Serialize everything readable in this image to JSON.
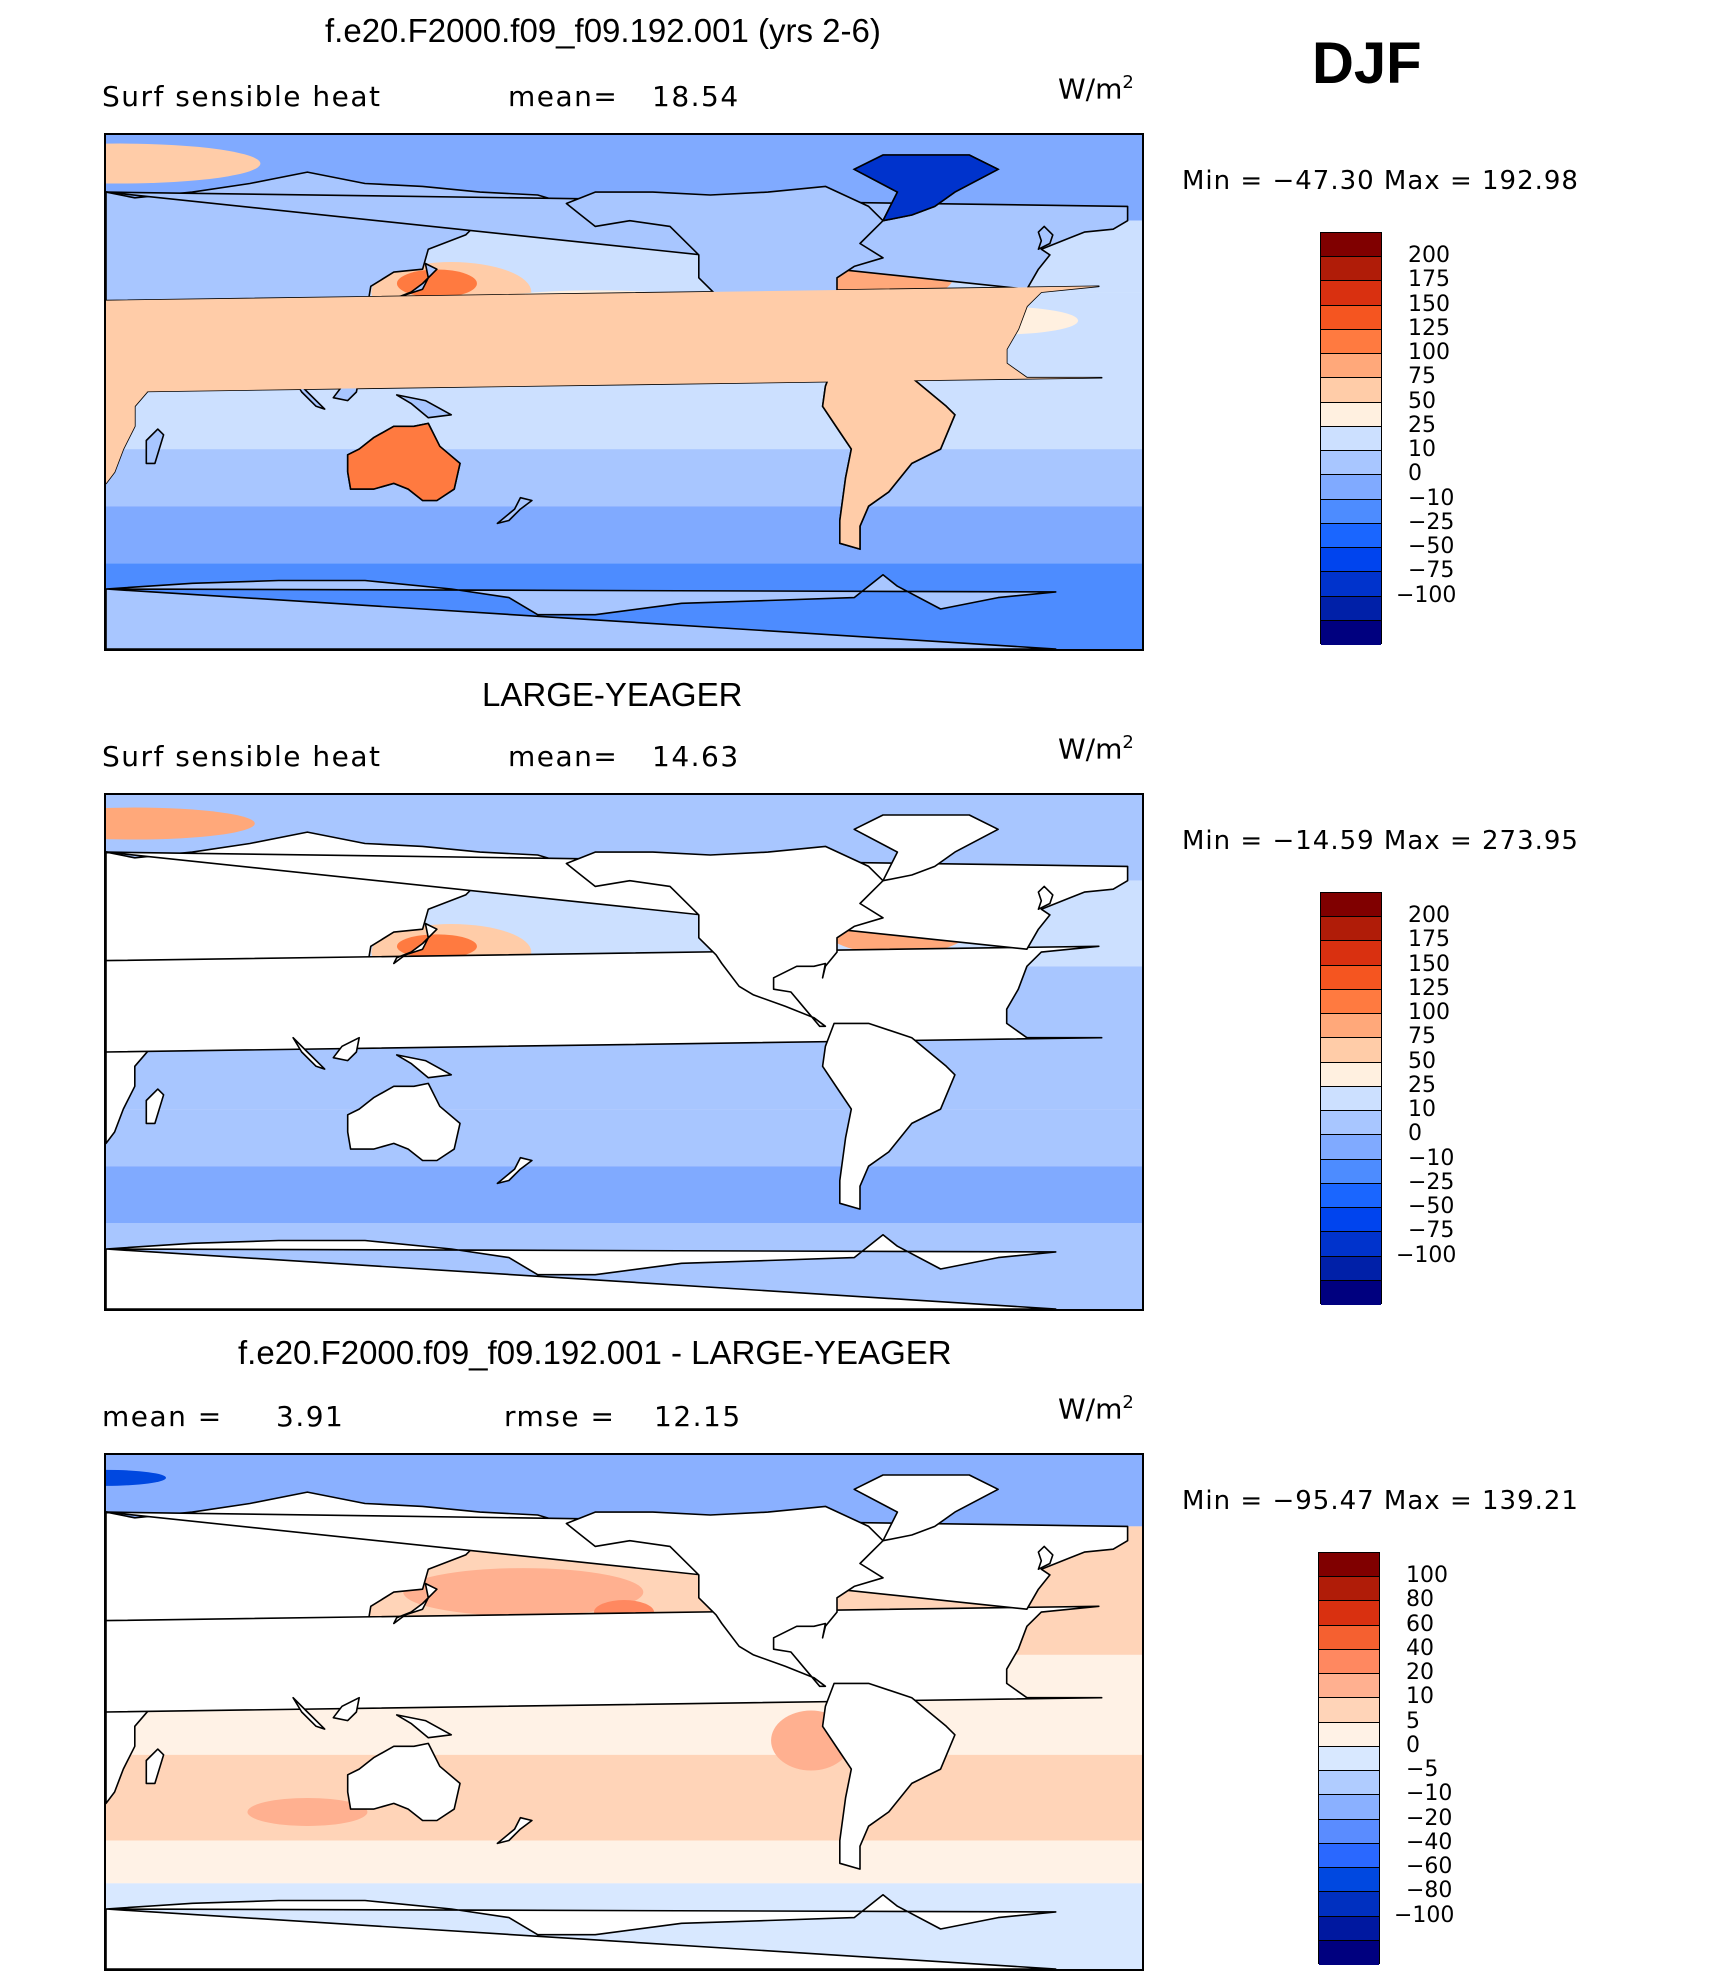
{
  "season": "DJF",
  "colors": {
    "abs_scale": [
      "#00007f",
      "#0020a8",
      "#0033cc",
      "#0044ee",
      "#1a66ff",
      "#4d8cff",
      "#80aaff",
      "#a8c6ff",
      "#cce0ff",
      "#fff0e0",
      "#ffcca8",
      "#ffa87a",
      "#ff7a40",
      "#f55520",
      "#d93010",
      "#b01c08",
      "#800000"
    ],
    "diff_scale": [
      "#00007f",
      "#0018a0",
      "#0030c0",
      "#0048e0",
      "#2a68ff",
      "#5a8cff",
      "#8ab0ff",
      "#b0ccff",
      "#d8e8ff",
      "#fff2e6",
      "#ffd4b8",
      "#ffb090",
      "#ff8860",
      "#f56030",
      "#d93010",
      "#b01c08",
      "#800000"
    ],
    "land_outline": "#000000"
  },
  "chart_data": [
    {
      "type": "heatmap",
      "name": "top",
      "title": "f.e20.F2000.f09_f09.192.001 (yrs 2-6)",
      "variable": "Surf  sensible  heat",
      "mean_label": "mean=",
      "mean_value": "18.54",
      "units_base": "W/m",
      "units_exp": "2",
      "min_text": "Min  =  −47.30  Max  =  192.98",
      "min": -47.3,
      "max": 192.98,
      "colorbar_labels": [
        "200",
        "175",
        "150",
        "125",
        "100",
        "75",
        "50",
        "25",
        "10",
        "0",
        "−10",
        "−25",
        "−50",
        "−75",
        "−100"
      ],
      "land_filled": true
    },
    {
      "type": "heatmap",
      "name": "middle",
      "title": "LARGE-YEAGER",
      "variable": "Surf  sensible  heat",
      "mean_label": "mean=",
      "mean_value": "14.63",
      "units_base": "W/m",
      "units_exp": "2",
      "min_text": "Min  =  −14.59  Max  =  273.95",
      "min": -14.59,
      "max": 273.95,
      "colorbar_labels": [
        "200",
        "175",
        "150",
        "125",
        "100",
        "75",
        "50",
        "25",
        "10",
        "0",
        "−10",
        "−25",
        "−50",
        "−75",
        "−100"
      ],
      "land_filled": false
    },
    {
      "type": "heatmap",
      "name": "bottom",
      "title": "f.e20.F2000.f09_f09.192.001 - LARGE-YEAGER",
      "mean_label": "mean  =",
      "mean_value": "3.91",
      "rmse_label": "rmse  =",
      "rmse_value": "12.15",
      "units_base": "W/m",
      "units_exp": "2",
      "min_text": "Min  =  −95.47  Max  =  139.21",
      "min": -95.47,
      "max": 139.21,
      "colorbar_labels": [
        "100",
        "80",
        "60",
        "40",
        "20",
        "10",
        "5",
        "0",
        "−5",
        "−10",
        "−20",
        "−40",
        "−60",
        "−80",
        "−100"
      ],
      "land_filled": false
    }
  ]
}
